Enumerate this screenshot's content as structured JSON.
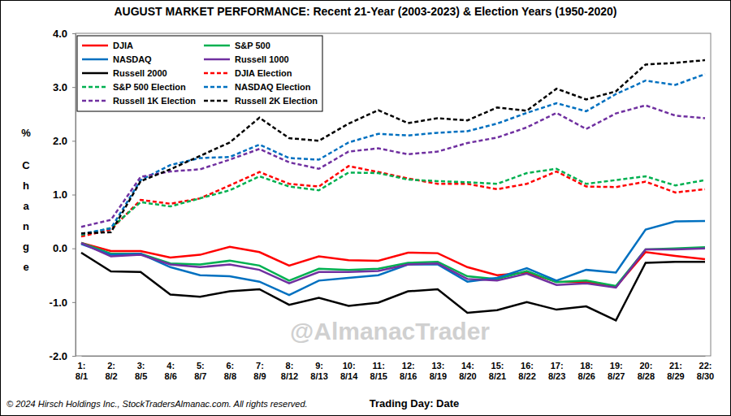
{
  "chart_data": {
    "type": "line",
    "title": "AUGUST MARKET PERFORMANCE: Recent 21-Year (2003-2023) & Election Years (1950-2020)",
    "y_label": "% Change",
    "x_label": "Trading Day: Date",
    "watermark": "@AlmanacTrader",
    "source": "© 2024 Hirsch Holdings Inc., StockTradersAlmanac.com. All rights reserved.",
    "categories": [
      "1:\n8/1",
      "2:\n8/2",
      "3:\n8/5",
      "4:\n8/6",
      "5:\n8/7",
      "6:\n8/8",
      "7:\n8/9",
      "8:\n8/12",
      "9:\n8/13",
      "10:\n8/14",
      "11:\n8/15",
      "12:\n8/16",
      "13:\n8/19",
      "14:\n8/20",
      "15:\n8/21",
      "16:\n8/22",
      "17:\n8/23",
      "18:\n8/26",
      "19:\n8/27",
      "20:\n8/28",
      "21:\n8/29",
      "22:\n8/30"
    ],
    "ylim": [
      -2,
      4
    ],
    "yticks": [
      {
        "value": -2,
        "label": "-2.0"
      },
      {
        "value": -1,
        "label": "-1.0"
      },
      {
        "value": 0,
        "label": "0.0"
      },
      {
        "value": 1,
        "label": "1.0"
      },
      {
        "value": 2,
        "label": "2.0"
      },
      {
        "value": 3,
        "label": "3.0"
      },
      {
        "value": 4,
        "label": "4.0"
      }
    ],
    "grid": false,
    "legend": "upper left",
    "series": [
      {
        "name": "DJIA",
        "color": "#ff0000",
        "line_style": "solid",
        "values": [
          0.1,
          -0.05,
          -0.05,
          -0.17,
          -0.12,
          0.03,
          -0.07,
          -0.32,
          -0.15,
          -0.22,
          -0.23,
          -0.08,
          -0.09,
          -0.35,
          -0.5,
          -0.45,
          -0.62,
          -0.63,
          -0.72,
          -0.07,
          -0.14,
          -0.2
        ]
      },
      {
        "name": "S&P 500",
        "color": "#00b050",
        "line_style": "solid",
        "values": [
          0.1,
          -0.1,
          -0.1,
          -0.28,
          -0.3,
          -0.23,
          -0.32,
          -0.6,
          -0.38,
          -0.4,
          -0.38,
          -0.27,
          -0.25,
          -0.52,
          -0.57,
          -0.42,
          -0.63,
          -0.6,
          -0.7,
          -0.02,
          0.0,
          0.02
        ]
      },
      {
        "name": "NASDAQ",
        "color": "#0070c0",
        "line_style": "solid",
        "values": [
          0.08,
          -0.12,
          -0.1,
          -0.35,
          -0.5,
          -0.52,
          -0.62,
          -0.87,
          -0.6,
          -0.55,
          -0.5,
          -0.3,
          -0.3,
          -0.62,
          -0.55,
          -0.37,
          -0.6,
          -0.4,
          -0.45,
          0.35,
          0.5,
          0.51
        ]
      },
      {
        "name": "Russell 1000",
        "color": "#7030a0",
        "line_style": "solid",
        "values": [
          0.1,
          -0.15,
          -0.12,
          -0.3,
          -0.35,
          -0.3,
          -0.4,
          -0.65,
          -0.44,
          -0.44,
          -0.42,
          -0.3,
          -0.28,
          -0.57,
          -0.6,
          -0.47,
          -0.68,
          -0.65,
          -0.73,
          -0.02,
          -0.02,
          0.0
        ]
      },
      {
        "name": "Russell 2000",
        "color": "#000000",
        "line_style": "solid",
        "values": [
          -0.08,
          -0.43,
          -0.44,
          -0.86,
          -0.9,
          -0.8,
          -0.76,
          -1.05,
          -0.92,
          -1.07,
          -1.01,
          -0.8,
          -0.76,
          -1.2,
          -1.15,
          -1.0,
          -1.14,
          -1.08,
          -1.34,
          -0.27,
          -0.25,
          -0.25
        ]
      },
      {
        "name": "DJIA Election",
        "color": "#ff0000",
        "line_style": "dashed",
        "values": [
          0.22,
          0.35,
          0.9,
          0.83,
          0.93,
          1.17,
          1.42,
          1.2,
          1.15,
          1.53,
          1.42,
          1.3,
          1.2,
          1.2,
          1.1,
          1.2,
          1.43,
          1.15,
          1.14,
          1.24,
          1.04,
          1.1
        ]
      },
      {
        "name": "S&P 500 Election",
        "color": "#00b050",
        "line_style": "dashed",
        "values": [
          0.25,
          0.38,
          0.86,
          0.78,
          0.93,
          1.08,
          1.34,
          1.15,
          1.08,
          1.41,
          1.4,
          1.28,
          1.25,
          1.23,
          1.2,
          1.4,
          1.48,
          1.2,
          1.27,
          1.34,
          1.17,
          1.27
        ]
      },
      {
        "name": "NASDAQ Election",
        "color": "#0070c0",
        "line_style": "dashed",
        "values": [
          0.27,
          0.37,
          1.27,
          1.55,
          1.68,
          1.7,
          1.93,
          1.68,
          1.65,
          1.97,
          2.13,
          2.1,
          2.15,
          2.18,
          2.32,
          2.52,
          2.7,
          2.55,
          2.87,
          3.12,
          3.04,
          3.24
        ]
      },
      {
        "name": "Russell 1K Election",
        "color": "#7030a0",
        "line_style": "dashed",
        "values": [
          0.4,
          0.53,
          1.33,
          1.43,
          1.47,
          1.65,
          1.85,
          1.6,
          1.48,
          1.8,
          1.86,
          1.75,
          1.8,
          1.96,
          2.06,
          2.25,
          2.52,
          2.22,
          2.51,
          2.66,
          2.47,
          2.42
        ]
      },
      {
        "name": "Russell 2K Election",
        "color": "#000000",
        "line_style": "dashed",
        "values": [
          0.28,
          0.3,
          1.25,
          1.47,
          1.72,
          1.97,
          2.43,
          2.05,
          2.0,
          2.32,
          2.57,
          2.33,
          2.42,
          2.38,
          2.62,
          2.56,
          2.97,
          2.77,
          2.92,
          3.42,
          3.45,
          3.5
        ]
      }
    ]
  }
}
